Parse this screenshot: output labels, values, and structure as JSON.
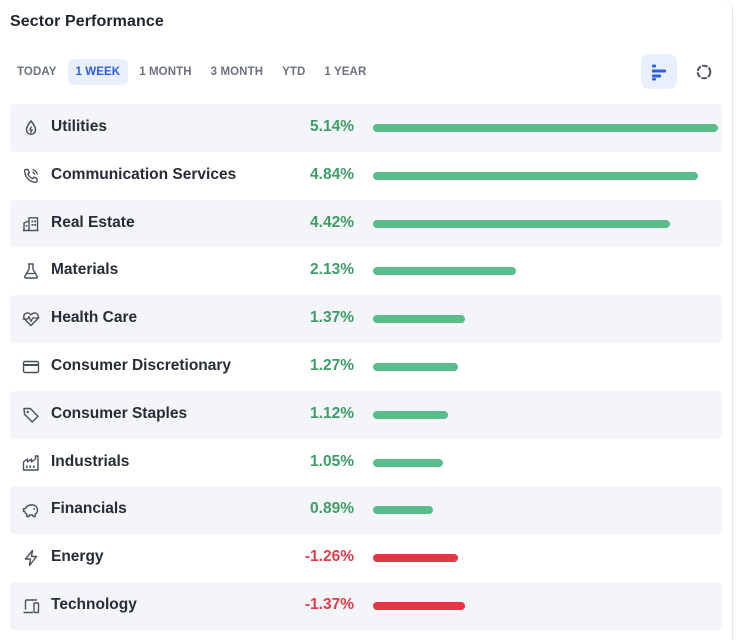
{
  "title": "Sector Performance",
  "tabs": [
    "TODAY",
    "1 WEEK",
    "1 MONTH",
    "3 MONTH",
    "YTD",
    "1 YEAR"
  ],
  "active_tab": "1 WEEK",
  "views": [
    "bar-chart-icon",
    "ring-chart-icon"
  ],
  "colors": {
    "accent": "#2c5fe3",
    "positive_text": "#3e9d67",
    "negative_text": "#e33b4a",
    "positive_bar": "#58bd8a",
    "negative_bar": "#ee3346"
  },
  "bar_scale_max": 5.14,
  "sectors": [
    {
      "key": "utilities",
      "name": "Utilities",
      "value": 5.14,
      "pct": "5.14%",
      "icon": "drop-icon"
    },
    {
      "key": "communication-services",
      "name": "Communication Services",
      "value": 4.84,
      "pct": "4.84%",
      "icon": "phone-icon"
    },
    {
      "key": "real-estate",
      "name": "Real Estate",
      "value": 4.42,
      "pct": "4.42%",
      "icon": "building-icon"
    },
    {
      "key": "materials",
      "name": "Materials",
      "value": 2.13,
      "pct": "2.13%",
      "icon": "flask-icon"
    },
    {
      "key": "health-care",
      "name": "Health Care",
      "value": 1.37,
      "pct": "1.37%",
      "icon": "heartbeat-icon"
    },
    {
      "key": "consumer-discretionary",
      "name": "Consumer Discretionary",
      "value": 1.27,
      "pct": "1.27%",
      "icon": "credit-card-icon"
    },
    {
      "key": "consumer-staples",
      "name": "Consumer Staples",
      "value": 1.12,
      "pct": "1.12%",
      "icon": "tag-icon"
    },
    {
      "key": "industrials",
      "name": "Industrials",
      "value": 1.05,
      "pct": "1.05%",
      "icon": "factory-icon"
    },
    {
      "key": "financials",
      "name": "Financials",
      "value": 0.89,
      "pct": "0.89%",
      "icon": "piggy-bank-icon"
    },
    {
      "key": "energy",
      "name": "Energy",
      "value": -1.26,
      "pct": "-1.26%",
      "icon": "lightning-icon"
    },
    {
      "key": "technology",
      "name": "Technology",
      "value": -1.37,
      "pct": "-1.37%",
      "icon": "devices-icon"
    }
  ]
}
